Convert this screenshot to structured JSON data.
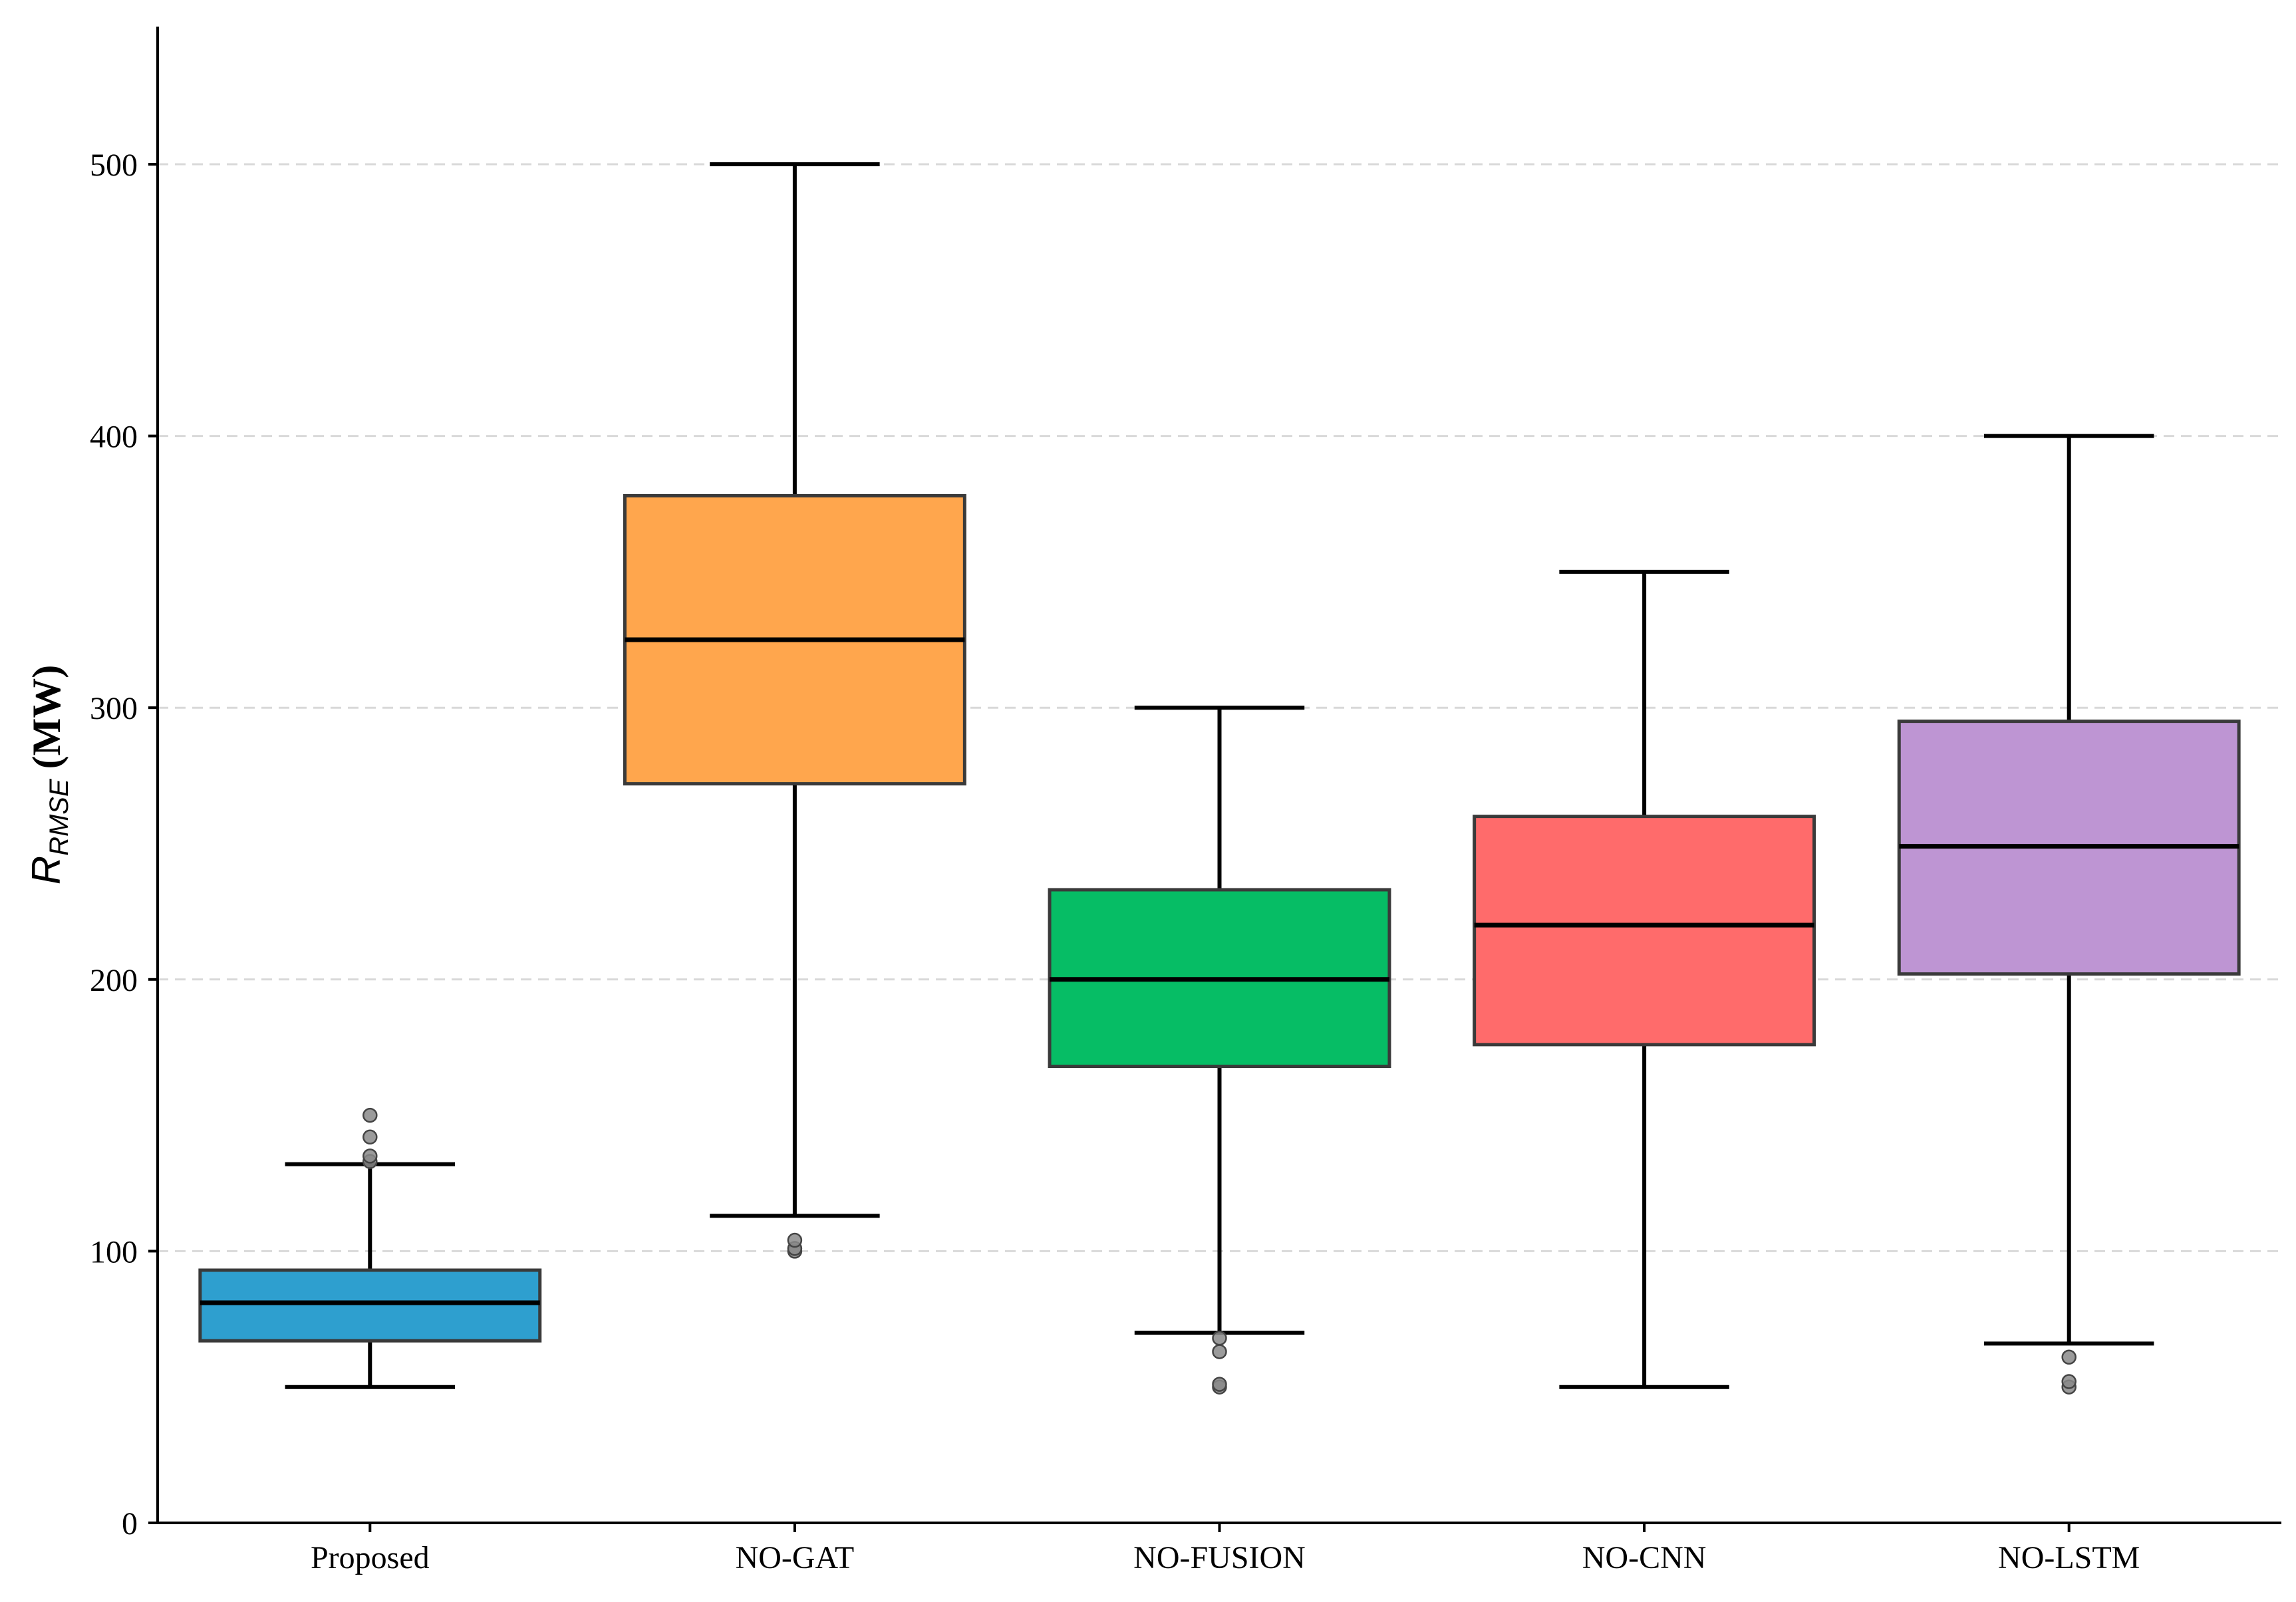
{
  "chart_data": {
    "type": "box",
    "title": "",
    "xlabel": "",
    "ylabel": {
      "symbol": "R",
      "subscript": "RMSE",
      "unit": " (MW)"
    },
    "ylim": [
      0,
      550
    ],
    "yticks": [
      0,
      100,
      200,
      300,
      400,
      500
    ],
    "grid": "horizontal-dashed",
    "categories": [
      "Proposed",
      "NO-GAT",
      "NO-FUSION",
      "NO-CNN",
      "NO-LSTM"
    ],
    "boxes": [
      {
        "name": "Proposed",
        "color": "#2E9FCF",
        "whisker_low": 50,
        "q1": 67,
        "median": 81,
        "q3": 93,
        "whisker_high": 132,
        "outliers": [
          133,
          135,
          142,
          150
        ]
      },
      {
        "name": "NO-GAT",
        "color": "#FFA64D",
        "whisker_low": 113,
        "q1": 272,
        "median": 325,
        "q3": 378,
        "whisker_high": 500,
        "outliers": [
          100,
          101,
          104
        ]
      },
      {
        "name": "NO-FUSION",
        "color": "#06BD65",
        "whisker_low": 70,
        "q1": 168,
        "median": 200,
        "q3": 233,
        "whisker_high": 300,
        "outliers": [
          50,
          51,
          63,
          68
        ]
      },
      {
        "name": "NO-CNN",
        "color": "#FF6B6B",
        "whisker_low": 50,
        "q1": 176,
        "median": 220,
        "q3": 260,
        "whisker_high": 350,
        "outliers": []
      },
      {
        "name": "NO-LSTM",
        "color": "#BE95D3",
        "whisker_low": 66,
        "q1": 202,
        "median": 249,
        "q3": 295,
        "whisker_high": 400,
        "outliers": [
          50,
          52,
          61
        ]
      }
    ]
  }
}
